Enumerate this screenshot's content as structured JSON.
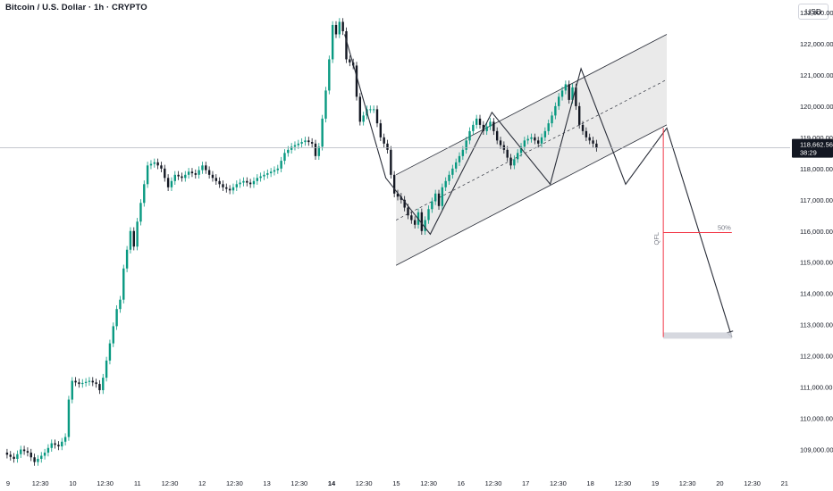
{
  "header": {
    "title": "Bitcoin / U.S. Dollar · 1h · CRYPTO",
    "currency": "USD"
  },
  "colors": {
    "up": "#089981",
    "down": "#131722",
    "background": "#ffffff",
    "channel_fill": "#e6e6e6",
    "channel_line": "#2a2e39",
    "projection_line": "#2a2e39",
    "target_red": "#f23645",
    "price_line": "#b2b5be",
    "price_badge": "#131722"
  },
  "last_price": {
    "value": 118662.56,
    "label": "118,662.56",
    "countdown": "38:29"
  },
  "annotations": {
    "fib_label": "50%",
    "vertical_label": "QFL"
  },
  "chart_data": {
    "type": "line",
    "title": "Bitcoin / U.S. Dollar · 1h · CRYPTO",
    "xlabel": "",
    "ylabel": "",
    "ylim": [
      108300,
      123400
    ],
    "x_ticks": [
      {
        "label": "9",
        "bold": false
      },
      {
        "label": "12:30",
        "bold": false
      },
      {
        "label": "10",
        "bold": false
      },
      {
        "label": "12:30",
        "bold": false
      },
      {
        "label": "11",
        "bold": false
      },
      {
        "label": "12:30",
        "bold": false
      },
      {
        "label": "12",
        "bold": false
      },
      {
        "label": "12:30",
        "bold": false
      },
      {
        "label": "13",
        "bold": false
      },
      {
        "label": "12:30",
        "bold": false
      },
      {
        "label": "14",
        "bold": true
      },
      {
        "label": "12:30",
        "bold": false
      },
      {
        "label": "15",
        "bold": false
      },
      {
        "label": "12:30",
        "bold": false
      },
      {
        "label": "16",
        "bold": false
      },
      {
        "label": "12:30",
        "bold": false
      },
      {
        "label": "17",
        "bold": false
      },
      {
        "label": "12:30",
        "bold": false
      },
      {
        "label": "18",
        "bold": false
      },
      {
        "label": "12:30",
        "bold": false
      },
      {
        "label": "19",
        "bold": false
      },
      {
        "label": "12:30",
        "bold": false
      },
      {
        "label": "20",
        "bold": false
      },
      {
        "label": "12:30",
        "bold": false
      },
      {
        "label": "21",
        "bold": false
      }
    ],
    "y_ticks": [
      {
        "value": 109000,
        "label": "109,000.00"
      },
      {
        "value": 110000,
        "label": "110,000.00"
      },
      {
        "value": 111000,
        "label": "111,000.00"
      },
      {
        "value": 112000,
        "label": "112,000.00"
      },
      {
        "value": 113000,
        "label": "113,000.00"
      },
      {
        "value": 114000,
        "label": "114,000.00"
      },
      {
        "value": 115000,
        "label": "115,000.00"
      },
      {
        "value": 116000,
        "label": "116,000.00"
      },
      {
        "value": 117000,
        "label": "117,000.00"
      },
      {
        "value": 118000,
        "label": "118,000.00"
      },
      {
        "value": 119000,
        "label": "119,000.00"
      },
      {
        "value": 120000,
        "label": "120,000.00"
      },
      {
        "value": 121000,
        "label": "121,000.00"
      },
      {
        "value": 122000,
        "label": "122,000.00"
      },
      {
        "value": 123000,
        "label": "123,000.00"
      }
    ],
    "price_path": [
      [
        0,
        108900
      ],
      [
        3,
        108700
      ],
      [
        5,
        109000
      ],
      [
        7,
        108900
      ],
      [
        9,
        108600
      ],
      [
        12,
        108900
      ],
      [
        14,
        109200
      ],
      [
        16,
        109100
      ],
      [
        18,
        109400
      ],
      [
        19,
        110600
      ],
      [
        20,
        111200
      ],
      [
        22,
        111100
      ],
      [
        25,
        111200
      ],
      [
        27,
        111100
      ],
      [
        28,
        110900
      ],
      [
        29,
        111300
      ],
      [
        31,
        112400
      ],
      [
        33,
        113500
      ],
      [
        34,
        113800
      ],
      [
        35,
        114800
      ],
      [
        37,
        116000
      ],
      [
        38,
        115500
      ],
      [
        39,
        116300
      ],
      [
        40,
        116900
      ],
      [
        41,
        117500
      ],
      [
        42,
        118100
      ],
      [
        44,
        118200
      ],
      [
        46,
        118000
      ],
      [
        48,
        117400
      ],
      [
        50,
        117800
      ],
      [
        52,
        117700
      ],
      [
        54,
        117900
      ],
      [
        56,
        117800
      ],
      [
        58,
        118100
      ],
      [
        60,
        117800
      ],
      [
        62,
        117600
      ],
      [
        64,
        117400
      ],
      [
        66,
        117300
      ],
      [
        68,
        117500
      ],
      [
        70,
        117600
      ],
      [
        72,
        117500
      ],
      [
        74,
        117700
      ],
      [
        76,
        117800
      ],
      [
        78,
        117900
      ],
      [
        80,
        118000
      ],
      [
        82,
        118500
      ],
      [
        84,
        118700
      ],
      [
        86,
        118800
      ],
      [
        88,
        118900
      ],
      [
        90,
        118800
      ],
      [
        91,
        118400
      ],
      [
        92,
        118700
      ],
      [
        93,
        119600
      ],
      [
        94,
        120500
      ],
      [
        95,
        121500
      ],
      [
        96,
        122600
      ],
      [
        97,
        122300
      ],
      [
        98,
        122700
      ],
      [
        99,
        122400
      ],
      [
        100,
        121500
      ],
      [
        102,
        121300
      ],
      [
        103,
        120300
      ],
      [
        104,
        119500
      ],
      [
        106,
        119900
      ],
      [
        108,
        119900
      ],
      [
        110,
        119000
      ],
      [
        112,
        118600
      ],
      [
        113,
        117800
      ],
      [
        114,
        117200
      ],
      [
        116,
        117000
      ],
      [
        118,
        116500
      ],
      [
        120,
        116200
      ],
      [
        121,
        116600
      ],
      [
        122,
        116000
      ],
      [
        124,
        116700
      ],
      [
        126,
        117200
      ],
      [
        127,
        116800
      ],
      [
        128,
        117400
      ],
      [
        130,
        117800
      ],
      [
        132,
        118200
      ],
      [
        134,
        118600
      ],
      [
        136,
        119200
      ],
      [
        138,
        119600
      ],
      [
        140,
        119200
      ],
      [
        142,
        119500
      ],
      [
        144,
        118900
      ],
      [
        146,
        118600
      ],
      [
        148,
        118100
      ],
      [
        150,
        118500
      ],
      [
        152,
        118900
      ],
      [
        154,
        119000
      ],
      [
        156,
        118800
      ],
      [
        158,
        119200
      ],
      [
        160,
        119700
      ],
      [
        162,
        120300
      ],
      [
        164,
        120700
      ],
      [
        165,
        120200
      ],
      [
        166,
        120600
      ],
      [
        167,
        120000
      ],
      [
        168,
        119400
      ],
      [
        170,
        119000
      ],
      [
        172,
        118800
      ],
      [
        173,
        118662.56
      ]
    ],
    "channel": {
      "upper": [
        [
          114,
          117800
        ],
        [
          193,
          122300
        ]
      ],
      "lower": [
        [
          114,
          114900
        ],
        [
          193,
          119400
        ]
      ],
      "midline": [
        [
          114,
          116350
        ],
        [
          193,
          120850
        ]
      ]
    },
    "wave_path": [
      [
        99,
        122300
      ],
      [
        111,
        117700
      ],
      [
        124,
        115900
      ],
      [
        142,
        119800
      ],
      [
        159,
        117500
      ],
      [
        168,
        121200
      ],
      [
        181,
        117500
      ],
      [
        193,
        119300
      ],
      [
        212,
        112600
      ]
    ],
    "target": {
      "vertical_x": 192,
      "top": 119300,
      "bottom": 112600,
      "fib_50": 115950,
      "fib_line_end_x": 212,
      "box_top": 112750,
      "box_bottom": 112550,
      "box_end_x": 212
    }
  }
}
